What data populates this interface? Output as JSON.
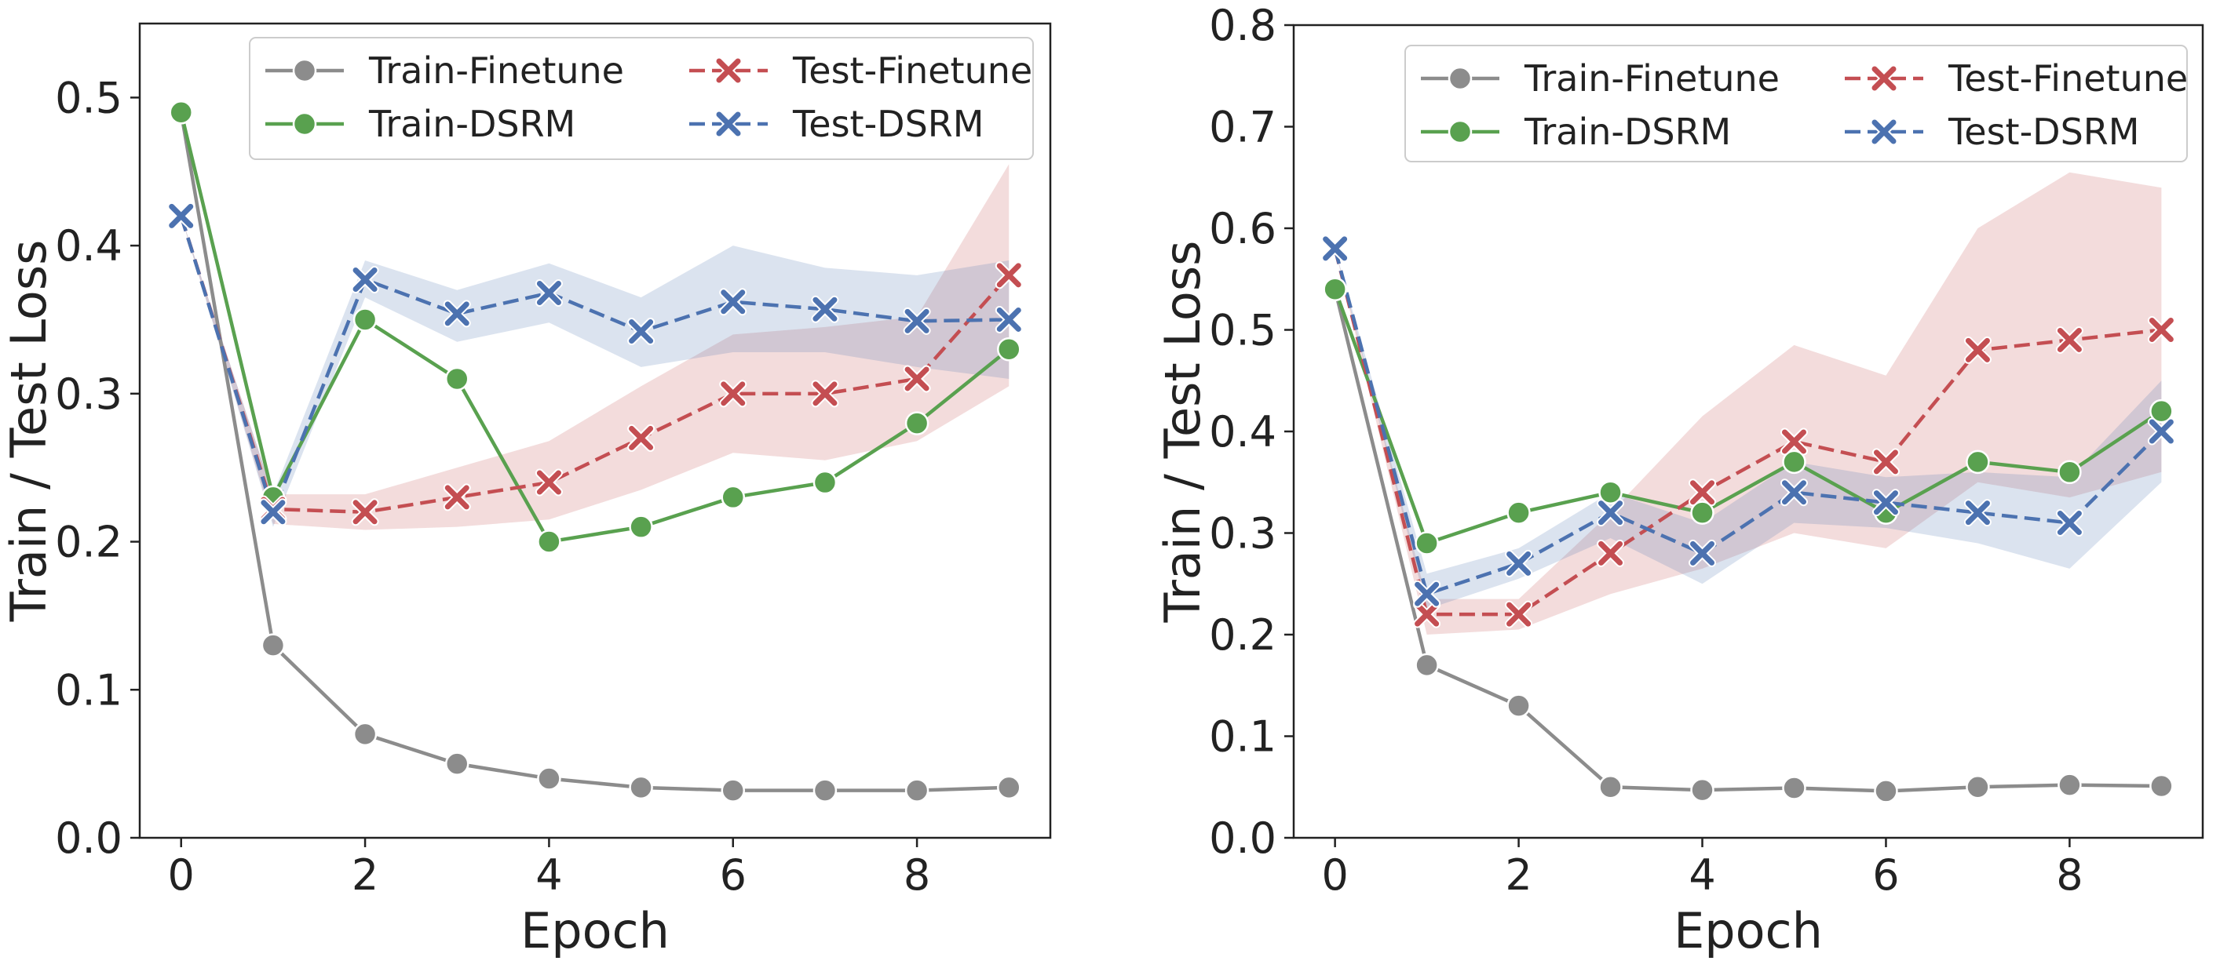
{
  "chart_data": [
    {
      "type": "line",
      "xlabel": "Epoch",
      "ylabel": "Train / Test Loss",
      "xlim": [
        -0.45,
        9.45
      ],
      "ylim": [
        0.0,
        0.55
      ],
      "xticks": [
        0,
        2,
        4,
        6,
        8
      ],
      "xtick_labels": [
        "0",
        "2",
        "4",
        "6",
        "8"
      ],
      "yticks": [
        0.0,
        0.1,
        0.2,
        0.3,
        0.4,
        0.5
      ],
      "ytick_labels": [
        "0.0",
        "0.1",
        "0.2",
        "0.3",
        "0.4",
        "0.5"
      ],
      "grid": false,
      "legend_position": "top-right",
      "x": [
        0,
        1,
        2,
        3,
        4,
        5,
        6,
        7,
        8,
        9
      ],
      "series": [
        {
          "name": "Train-Finetune",
          "color": "#8c8c8c",
          "style": "solid",
          "marker": "circle",
          "values": [
            0.49,
            0.13,
            0.07,
            0.05,
            0.04,
            0.034,
            0.032,
            0.032,
            0.032,
            0.034
          ]
        },
        {
          "name": "Train-DSRM",
          "color": "#59a14f",
          "style": "solid",
          "marker": "circle",
          "values": [
            0.49,
            0.23,
            0.35,
            0.31,
            0.2,
            0.21,
            0.23,
            0.24,
            0.28,
            0.33
          ]
        },
        {
          "name": "Test-Finetune",
          "color": "#c44e52",
          "style": "dashed",
          "marker": "x",
          "values": [
            0.42,
            0.222,
            0.22,
            0.23,
            0.24,
            0.27,
            0.3,
            0.3,
            0.31,
            0.38
          ],
          "band_low": [
            0.42,
            0.212,
            0.208,
            0.21,
            0.215,
            0.235,
            0.26,
            0.255,
            0.268,
            0.305
          ],
          "band_high": [
            0.42,
            0.232,
            0.232,
            0.25,
            0.268,
            0.305,
            0.34,
            0.345,
            0.352,
            0.455
          ]
        },
        {
          "name": "Test-DSRM",
          "color": "#4c72b0",
          "style": "dashed",
          "marker": "x",
          "values": [
            0.42,
            0.22,
            0.377,
            0.354,
            0.368,
            0.342,
            0.362,
            0.357,
            0.349,
            0.35
          ],
          "band_low": [
            0.42,
            0.21,
            0.365,
            0.335,
            0.348,
            0.318,
            0.328,
            0.328,
            0.318,
            0.31
          ],
          "band_high": [
            0.42,
            0.232,
            0.39,
            0.37,
            0.388,
            0.365,
            0.4,
            0.385,
            0.38,
            0.39
          ]
        }
      ]
    },
    {
      "type": "line",
      "xlabel": "Epoch",
      "ylabel": "Train / Test Loss",
      "xlim": [
        -0.45,
        9.45
      ],
      "ylim": [
        0.0,
        0.8
      ],
      "xticks": [
        0,
        2,
        4,
        6,
        8
      ],
      "xtick_labels": [
        "0",
        "2",
        "4",
        "6",
        "8"
      ],
      "yticks": [
        0.0,
        0.1,
        0.2,
        0.3,
        0.4,
        0.5,
        0.6,
        0.7,
        0.8
      ],
      "ytick_labels": [
        "0.0",
        "0.1",
        "0.2",
        "0.3",
        "0.4",
        "0.5",
        "0.6",
        "0.7",
        "0.8"
      ],
      "grid": false,
      "legend_position": "top-right",
      "x": [
        0,
        1,
        2,
        3,
        4,
        5,
        6,
        7,
        8,
        9
      ],
      "series": [
        {
          "name": "Train-Finetune",
          "color": "#8c8c8c",
          "style": "solid",
          "marker": "circle",
          "values": [
            0.54,
            0.17,
            0.13,
            0.05,
            0.047,
            0.049,
            0.046,
            0.05,
            0.052,
            0.051
          ]
        },
        {
          "name": "Train-DSRM",
          "color": "#59a14f",
          "style": "solid",
          "marker": "circle",
          "values": [
            0.54,
            0.29,
            0.32,
            0.34,
            0.32,
            0.37,
            0.32,
            0.37,
            0.36,
            0.42
          ]
        },
        {
          "name": "Test-Finetune",
          "color": "#c44e52",
          "style": "dashed",
          "marker": "x",
          "values": [
            0.58,
            0.22,
            0.22,
            0.28,
            0.34,
            0.39,
            0.37,
            0.48,
            0.49,
            0.5
          ],
          "band_low": [
            0.58,
            0.2,
            0.205,
            0.24,
            0.265,
            0.3,
            0.285,
            0.35,
            0.335,
            0.36
          ],
          "band_high": [
            0.58,
            0.235,
            0.235,
            0.32,
            0.415,
            0.485,
            0.455,
            0.6,
            0.655,
            0.64
          ]
        },
        {
          "name": "Test-DSRM",
          "color": "#4c72b0",
          "style": "dashed",
          "marker": "x",
          "values": [
            0.58,
            0.24,
            0.27,
            0.32,
            0.28,
            0.34,
            0.33,
            0.32,
            0.31,
            0.4
          ],
          "band_low": [
            0.58,
            0.225,
            0.255,
            0.295,
            0.25,
            0.31,
            0.305,
            0.29,
            0.265,
            0.35
          ],
          "band_high": [
            0.58,
            0.26,
            0.285,
            0.34,
            0.31,
            0.37,
            0.355,
            0.36,
            0.355,
            0.45
          ]
        }
      ]
    }
  ]
}
